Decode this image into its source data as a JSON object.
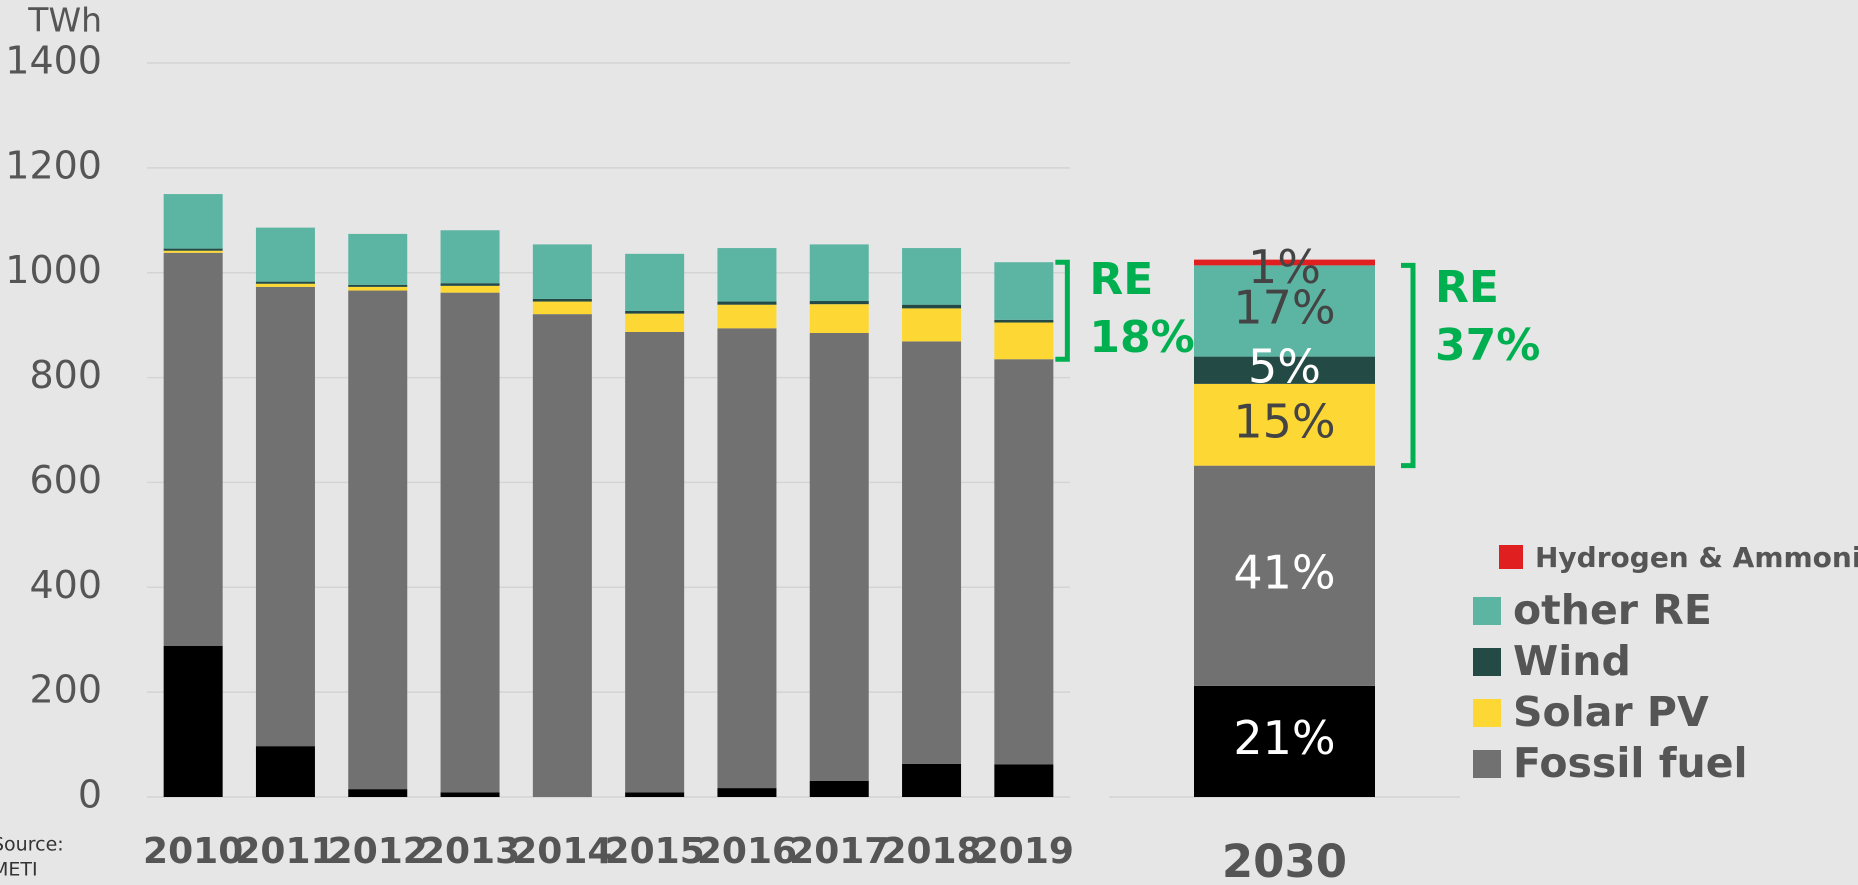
{
  "chart_data": [
    {
      "type": "bar",
      "stacked": true,
      "y_label": "TWh",
      "categories": [
        "2010",
        "2011",
        "2012",
        "2013",
        "2014",
        "2015",
        "2016",
        "2017",
        "2018",
        "2019"
      ],
      "ylim": [
        0,
        1400
      ],
      "yticks": [
        0,
        200,
        400,
        600,
        800,
        1000,
        1200,
        1400
      ],
      "grid": true,
      "series": [
        {
          "color": "#000000",
          "values": [
            288,
            97,
            15,
            9,
            0,
            9,
            17,
            31,
            63,
            62
          ]
        },
        {
          "name": "Fossil fuel",
          "color": "#717171",
          "values": [
            750,
            876,
            951,
            953,
            921,
            878,
            877,
            854,
            806,
            773
          ]
        },
        {
          "name": "Solar PV",
          "color": "#fdd835",
          "values": [
            4,
            6,
            7,
            13,
            24,
            35,
            45,
            55,
            63,
            70
          ]
        },
        {
          "name": "Wind",
          "color": "#234a44",
          "values": [
            4,
            4,
            4,
            5,
            5,
            5,
            6,
            6,
            7,
            5
          ]
        },
        {
          "name": "other RE",
          "color": "#5bb5a2",
          "values": [
            104,
            103,
            97,
            101,
            104,
            109,
            102,
            108,
            108,
            110
          ]
        }
      ],
      "annotation": [
        "RE",
        "18%"
      ]
    },
    {
      "type": "bar",
      "stacked": true,
      "categories": [
        "2030"
      ],
      "ylim": [
        0,
        1400
      ],
      "series": [
        {
          "color": "#000000",
          "values": [
            212
          ],
          "share_label": "21%"
        },
        {
          "name": "Fossil fuel",
          "color": "#717171",
          "values": [
            420
          ],
          "share_label": "41%"
        },
        {
          "name": "Solar PV",
          "color": "#fdd835",
          "values": [
            156
          ],
          "share_label": "15%"
        },
        {
          "name": "Wind",
          "color": "#234a44",
          "values": [
            52
          ],
          "share_label": "5%"
        },
        {
          "name": "other RE",
          "color": "#5bb5a2",
          "values": [
            174
          ],
          "share_label": "17%"
        },
        {
          "name": "Hydrogen & Ammonia",
          "color": "#e02020",
          "values": [
            11
          ],
          "share_label": "1%"
        }
      ],
      "annotation": [
        "RE",
        "37%"
      ]
    }
  ],
  "source": [
    "Source:",
    "METI"
  ]
}
